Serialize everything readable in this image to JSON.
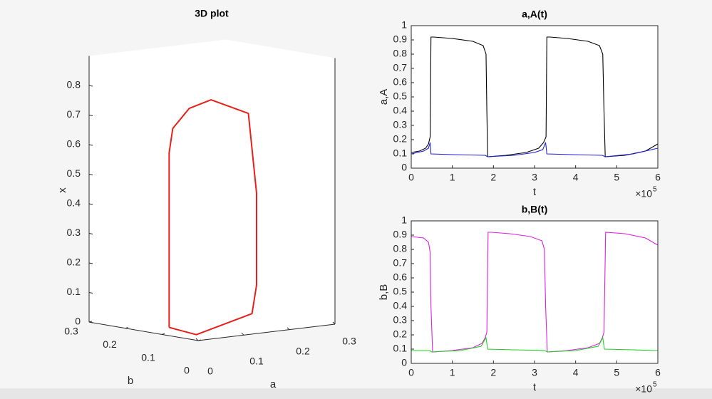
{
  "chart_data": [
    {
      "type": "line3d",
      "title": "3D plot",
      "xlabel": "a",
      "ylabel": "b",
      "zlabel": "x",
      "xlim": [
        0,
        0.3
      ],
      "xticks": [
        0,
        0.1,
        0.2,
        0.3
      ],
      "ylim": [
        0,
        0.3
      ],
      "yticks": [
        0,
        0.1,
        0.2,
        0.3
      ],
      "zlim": [
        0,
        0.9
      ],
      "zticks": [
        0,
        0.1,
        0.2,
        0.3,
        0.4,
        0.5,
        0.6,
        0.7,
        0.8
      ],
      "series": [
        {
          "color": "#e8201a",
          "x": [
            0.04,
            0.02,
            0.15,
            0.16,
            0.16,
            0.16,
            0.15,
            0.1,
            0.06,
            0.04,
            0.04,
            0.04,
            0.04
          ],
          "y": [
            0.13,
            0.03,
            0.04,
            0.04,
            0.04,
            0.04,
            0.05,
            0.09,
            0.1,
            0.12,
            0.13,
            0.13,
            0.13
          ],
          "values": [
            0.01,
            0.01,
            0.055,
            0.15,
            0.39,
            0.46,
            0.73,
            0.777,
            0.753,
            0.685,
            0.6,
            0.49,
            0.01
          ]
        }
      ]
    },
    {
      "type": "line",
      "title": "a,A(t)",
      "xlabel": "t",
      "ylabel": "a,A",
      "x_multiplier": "×10",
      "x_exponent": "5",
      "xlim": [
        0,
        6
      ],
      "xticks": [
        0,
        1,
        2,
        3,
        4,
        5,
        6
      ],
      "ylim": [
        0,
        1
      ],
      "yticks": [
        0,
        0.1,
        0.2,
        0.3,
        0.4,
        0.5,
        0.6,
        0.7,
        0.8,
        0.9,
        1
      ],
      "series": [
        {
          "color": "#000000",
          "x": [
            0,
            0.2,
            0.35,
            0.42,
            0.46,
            0.48,
            0.55,
            1.0,
            1.5,
            1.75,
            1.82,
            1.84,
            1.86,
            2.3,
            2.8,
            3.1,
            3.22,
            3.28,
            3.3,
            3.38,
            3.8,
            4.3,
            4.58,
            4.66,
            4.69,
            4.72,
            5.2,
            5.7,
            6
          ],
          "values": [
            0.11,
            0.12,
            0.14,
            0.17,
            0.22,
            0.92,
            0.92,
            0.91,
            0.89,
            0.86,
            0.8,
            0.4,
            0.08,
            0.09,
            0.11,
            0.14,
            0.18,
            0.22,
            0.92,
            0.92,
            0.91,
            0.89,
            0.86,
            0.8,
            0.4,
            0.08,
            0.09,
            0.12,
            0.17
          ]
        },
        {
          "color": "#1f1fd6",
          "x": [
            0,
            0.3,
            0.42,
            0.46,
            0.48,
            1.0,
            1.8,
            1.86,
            2.5,
            3.0,
            3.2,
            3.27,
            3.3,
            3.9,
            4.65,
            4.72,
            5.4,
            6
          ],
          "values": [
            0.1,
            0.12,
            0.14,
            0.18,
            0.1,
            0.095,
            0.09,
            0.08,
            0.09,
            0.11,
            0.13,
            0.18,
            0.1,
            0.095,
            0.09,
            0.08,
            0.1,
            0.14
          ]
        }
      ]
    },
    {
      "type": "line",
      "title": "b,B(t)",
      "xlabel": "t",
      "ylabel": "b,B",
      "x_multiplier": "×10",
      "x_exponent": "5",
      "xlim": [
        0,
        6
      ],
      "xticks": [
        0,
        1,
        2,
        3,
        4,
        5,
        6
      ],
      "ylim": [
        0,
        1
      ],
      "yticks": [
        0,
        0.1,
        0.2,
        0.3,
        0.4,
        0.5,
        0.6,
        0.7,
        0.8,
        0.9,
        1
      ],
      "series": [
        {
          "color": "#e020e0",
          "x": [
            0,
            0.3,
            0.42,
            0.46,
            0.48,
            0.52,
            1.0,
            1.5,
            1.72,
            1.8,
            1.84,
            1.87,
            1.95,
            2.4,
            2.9,
            3.18,
            3.24,
            3.27,
            3.31,
            3.8,
            4.3,
            4.58,
            4.65,
            4.69,
            4.73,
            5.2,
            5.7,
            6
          ],
          "values": [
            0.89,
            0.88,
            0.85,
            0.78,
            0.4,
            0.08,
            0.09,
            0.11,
            0.14,
            0.18,
            0.22,
            0.92,
            0.92,
            0.91,
            0.89,
            0.86,
            0.8,
            0.4,
            0.08,
            0.09,
            0.11,
            0.14,
            0.18,
            0.22,
            0.92,
            0.91,
            0.88,
            0.83
          ]
        },
        {
          "color": "#22d022",
          "x": [
            0,
            0.45,
            0.5,
            1.2,
            1.7,
            1.82,
            1.86,
            2.5,
            3.25,
            3.31,
            4.0,
            4.55,
            4.66,
            4.7,
            5.4,
            6
          ],
          "values": [
            0.09,
            0.09,
            0.08,
            0.09,
            0.12,
            0.18,
            0.1,
            0.095,
            0.09,
            0.08,
            0.09,
            0.12,
            0.18,
            0.1,
            0.095,
            0.09
          ]
        }
      ]
    }
  ]
}
